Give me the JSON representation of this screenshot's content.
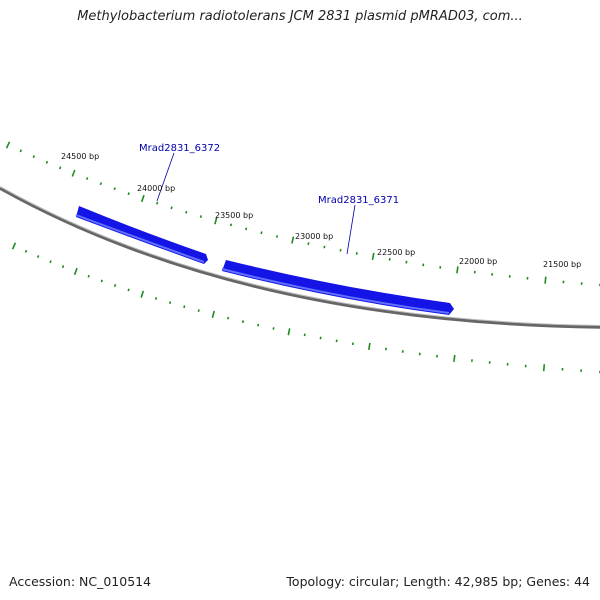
{
  "title": "Methylobacterium radiotolerans JCM 2831 plasmid pMRAD03, com...",
  "footer": {
    "accession": "Accession: NC_010514",
    "summary": "Topology: circular; Length: 42,985 bp; Genes: 44"
  },
  "ticks": [
    {
      "label": "24500 bp"
    },
    {
      "label": "24000 bp"
    },
    {
      "label": "23500 bp"
    },
    {
      "label": "23000 bp"
    },
    {
      "label": "22500 bp"
    },
    {
      "label": "22000 bp"
    },
    {
      "label": "21500 bp"
    }
  ],
  "genes": [
    {
      "label": "Mrad2831_6372"
    },
    {
      "label": "Mrad2831_6371"
    }
  ],
  "colors": {
    "gene_fill": "#1414e6",
    "gene_highlight": "#5a6cff",
    "tick": "#1e8a1e",
    "backbone": "#777777",
    "label_line": "#0000aa"
  }
}
